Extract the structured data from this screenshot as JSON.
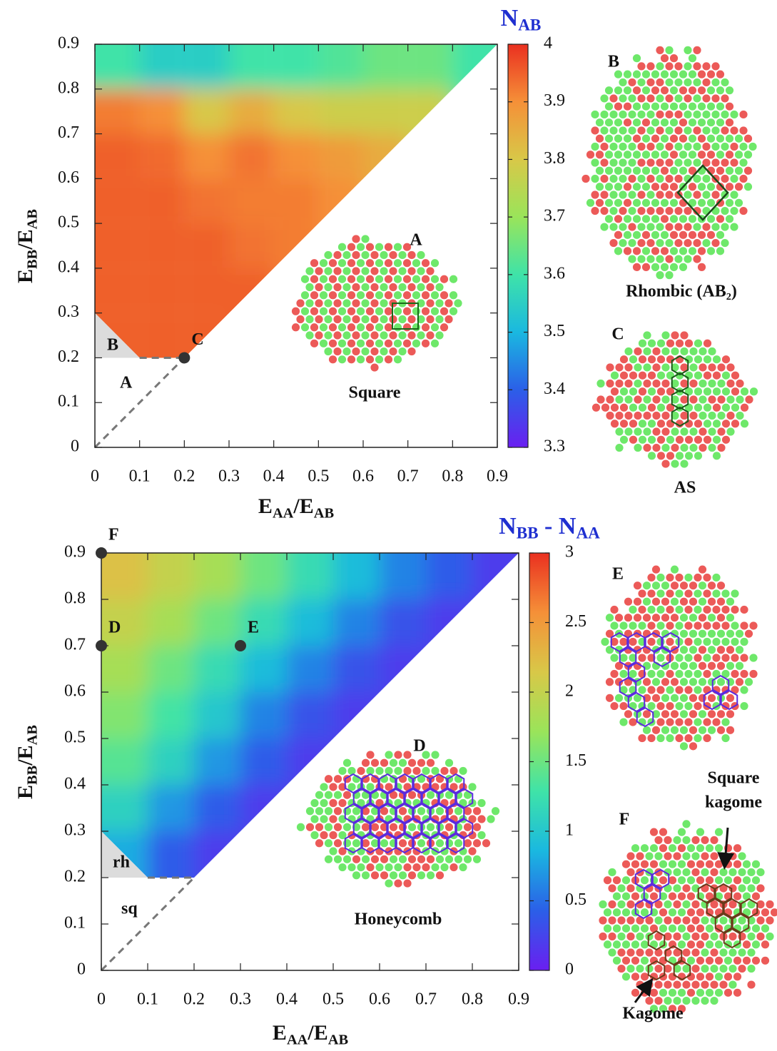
{
  "chart_data": [
    {
      "type": "heatmap",
      "title": [
        "N",
        "AB"
      ],
      "xlabel": [
        "E",
        "AA",
        "/E",
        "AB"
      ],
      "ylabel": [
        "E",
        "BB",
        "/E",
        "AB"
      ],
      "xlim": [
        0,
        0.9
      ],
      "ylim": [
        0,
        0.9
      ],
      "xticks": [
        0,
        0.1,
        0.2,
        0.3,
        0.4,
        0.5,
        0.6,
        0.7,
        0.8,
        0.9
      ],
      "yticks": [
        0,
        0.1,
        0.2,
        0.3,
        0.4,
        0.5,
        0.6,
        0.7,
        0.8,
        0.9
      ],
      "x": [
        0.05,
        0.15,
        0.25,
        0.35,
        0.45,
        0.55,
        0.65,
        0.75,
        0.85
      ],
      "y": [
        0.05,
        0.15,
        0.25,
        0.35,
        0.45,
        0.55,
        0.65,
        0.75,
        0.85
      ],
      "z": [
        [
          null,
          null,
          null,
          null,
          null,
          null,
          null,
          null,
          null
        ],
        [
          null,
          null,
          null,
          null,
          null,
          null,
          null,
          null,
          null
        ],
        [
          3.95,
          3.95,
          3.95,
          null,
          null,
          null,
          null,
          null,
          null
        ],
        [
          3.95,
          3.95,
          3.95,
          3.95,
          null,
          null,
          null,
          null,
          null
        ],
        [
          3.95,
          3.95,
          3.95,
          3.93,
          3.92,
          null,
          null,
          null,
          null
        ],
        [
          3.95,
          3.95,
          3.93,
          3.92,
          3.92,
          3.9,
          null,
          null,
          null
        ],
        [
          3.95,
          3.94,
          3.9,
          3.93,
          3.9,
          3.88,
          3.85,
          null,
          null
        ],
        [
          3.92,
          3.9,
          3.8,
          3.85,
          3.8,
          3.78,
          3.78,
          3.78,
          null
        ],
        [
          3.6,
          3.55,
          3.55,
          3.6,
          3.6,
          3.62,
          3.65,
          3.65,
          3.6
        ]
      ],
      "region": [
        [
          0,
          0.9
        ],
        [
          0.9,
          0.9
        ],
        [
          0.2,
          0.2
        ],
        [
          0.1,
          0.2
        ],
        [
          0,
          0.3
        ]
      ],
      "gray_region": [
        [
          0,
          0.3
        ],
        [
          0,
          0.2
        ],
        [
          0.1,
          0.2
        ]
      ],
      "dashed": [
        [
          [
            0.1,
            0.2
          ],
          [
            0.2,
            0.2
          ]
        ],
        [
          [
            0,
            0
          ],
          [
            0.2,
            0.2
          ]
        ]
      ],
      "points": [
        {
          "label": "C",
          "x": 0.2,
          "y": 0.2
        }
      ],
      "region_labels": [
        "B",
        "A"
      ],
      "colormap": [
        "#6a1ff0",
        "#2b5fe8",
        "#1ab8e0",
        "#3fe3a8",
        "#9ae45a",
        "#d8c848",
        "#f59038",
        "#ea3020"
      ],
      "colorbar": {
        "lim": [
          3.3,
          4
        ],
        "ticks": [
          3.3,
          3.4,
          3.5,
          3.6,
          3.7,
          3.8,
          3.9,
          4
        ]
      },
      "insets": [
        {
          "label": "A",
          "caption": [
            "Square"
          ]
        },
        {
          "label": "B",
          "caption": [
            "Rhombic (AB₂)"
          ]
        },
        {
          "label": "C",
          "caption": [
            "AS"
          ]
        }
      ]
    },
    {
      "type": "heatmap",
      "title": [
        "N",
        "BB",
        " - N",
        "AA"
      ],
      "xlabel": [
        "E",
        "AA",
        "/E",
        "AB"
      ],
      "ylabel": [
        "E",
        "BB",
        "/E",
        "AB"
      ],
      "xlim": [
        0,
        0.9
      ],
      "ylim": [
        0,
        0.9
      ],
      "xticks": [
        0,
        0.1,
        0.2,
        0.3,
        0.4,
        0.5,
        0.6,
        0.7,
        0.8,
        0.9
      ],
      "yticks": [
        0,
        0.1,
        0.2,
        0.3,
        0.4,
        0.5,
        0.6,
        0.7,
        0.8,
        0.9
      ],
      "x": [
        0.05,
        0.15,
        0.25,
        0.35,
        0.45,
        0.55,
        0.65,
        0.75,
        0.85
      ],
      "y": [
        0.05,
        0.15,
        0.25,
        0.35,
        0.45,
        0.55,
        0.65,
        0.75,
        0.85
      ],
      "z": [
        [
          null,
          null,
          null,
          null,
          null,
          null,
          null,
          null,
          null
        ],
        [
          null,
          null,
          null,
          null,
          null,
          null,
          null,
          null,
          null
        ],
        [
          0.8,
          0.4,
          0.2,
          null,
          null,
          null,
          null,
          null,
          null
        ],
        [
          1.1,
          0.7,
          0.4,
          0.2,
          null,
          null,
          null,
          null,
          null
        ],
        [
          1.4,
          1.1,
          0.7,
          0.4,
          0.2,
          null,
          null,
          null,
          null
        ],
        [
          1.6,
          1.3,
          1.0,
          0.6,
          0.35,
          0.2,
          null,
          null,
          null
        ],
        [
          1.8,
          1.5,
          1.2,
          0.9,
          0.6,
          0.35,
          0.2,
          null,
          null
        ],
        [
          2.0,
          1.8,
          1.5,
          1.2,
          0.9,
          0.6,
          0.35,
          0.2,
          null
        ],
        [
          2.2,
          2.0,
          1.8,
          1.5,
          1.2,
          0.9,
          0.6,
          0.4,
          0.2
        ]
      ],
      "region": [
        [
          0,
          0.9
        ],
        [
          0.9,
          0.9
        ],
        [
          0.2,
          0.2
        ],
        [
          0.1,
          0.2
        ],
        [
          0,
          0.3
        ]
      ],
      "gray_region": [
        [
          0,
          0.3
        ],
        [
          0,
          0.2
        ],
        [
          0.1,
          0.2
        ]
      ],
      "dashed": [
        [
          [
            0.1,
            0.2
          ],
          [
            0.2,
            0.2
          ]
        ],
        [
          [
            0,
            0
          ],
          [
            0.2,
            0.2
          ]
        ]
      ],
      "points": [
        {
          "label": "F",
          "x": 0,
          "y": 0.9
        },
        {
          "label": "D",
          "x": 0,
          "y": 0.7
        },
        {
          "label": "E",
          "x": 0.3,
          "y": 0.7
        }
      ],
      "region_labels": [
        "rh",
        "sq"
      ],
      "colormap": [
        "#6a1ff0",
        "#2b5fe8",
        "#1ab8e0",
        "#3fe3a8",
        "#9ae45a",
        "#d8c848",
        "#f59038",
        "#ea3020"
      ],
      "colorbar": {
        "lim": [
          0,
          3
        ],
        "ticks": [
          0,
          0.5,
          1,
          1.5,
          2,
          2.5,
          3
        ]
      },
      "insets": [
        {
          "label": "D",
          "caption": [
            "Honeycomb"
          ]
        },
        {
          "label": "E",
          "caption": []
        },
        {
          "label": "F",
          "caption": [
            "Square",
            "kagome",
            "Kagome"
          ]
        }
      ]
    }
  ]
}
